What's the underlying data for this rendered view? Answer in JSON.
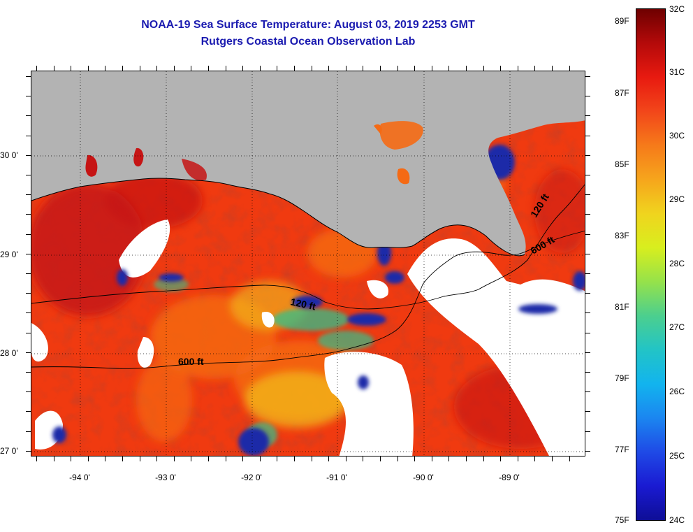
{
  "header": {
    "line1": "NOAA-19 Sea Surface Temperature:  August 03, 2019 2253 GMT",
    "line2": "Rutgers Coastal Ocean Observation Lab"
  },
  "map": {
    "lat_labels": [
      "30 0'",
      "29 0'",
      "28 0'",
      "27 0'"
    ],
    "lon_labels": [
      "-94 0'",
      "-93 0'",
      "-92 0'",
      "-91 0'",
      "-90 0'",
      "-89 0'"
    ],
    "contours": {
      "left_120": "120 ft",
      "left_600": "600 ft",
      "right_120": "120 ft",
      "right_600": "600 ft"
    },
    "colors": {
      "land": "#b3b3b3",
      "cloud": "#ffffff",
      "warm_base": "#f03a10",
      "hot": "#c61414",
      "orange": "#f56a14",
      "yellow": "#f2c21c",
      "green": "#33c08a",
      "cold": "#1a2aa8"
    }
  },
  "colorbar": {
    "fahrenheit_labels": [
      "89F",
      "87F",
      "85F",
      "83F",
      "81F",
      "79F",
      "77F",
      "75F"
    ],
    "celsius_labels": [
      "32C",
      "31C",
      "30C",
      "29C",
      "28C",
      "27C",
      "26C",
      "25C",
      "24C"
    ],
    "gradient": [
      "#6e0000",
      "#b40a0a",
      "#e81a10",
      "#f2461a",
      "#f67a1a",
      "#f6a51c",
      "#f0d41e",
      "#d8ee1e",
      "#96e24a",
      "#4ccf8e",
      "#22c4c6",
      "#12b4ee",
      "#1b86f0",
      "#1f4ae6",
      "#1a1ad2",
      "#0e0e96"
    ]
  }
}
